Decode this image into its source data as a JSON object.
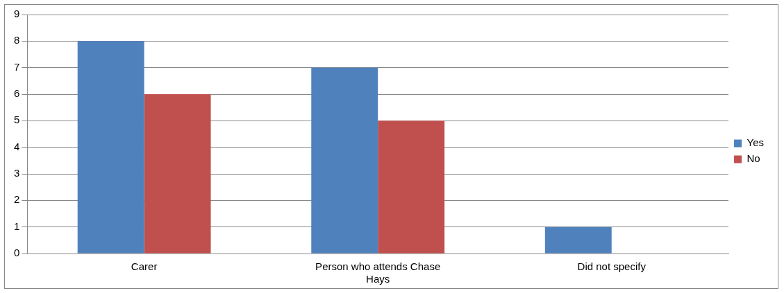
{
  "chart_data": {
    "type": "bar",
    "categories": [
      "Carer",
      "Person who attends Chase Hays",
      "Did not specify"
    ],
    "series": [
      {
        "name": "Yes",
        "color": "#4f81bd",
        "values": [
          8,
          7,
          1
        ]
      },
      {
        "name": "No",
        "color": "#c0504d",
        "values": [
          6,
          5,
          0
        ]
      }
    ],
    "ylim": [
      0,
      9
    ],
    "yticks": [
      0,
      1,
      2,
      3,
      4,
      5,
      6,
      7,
      8,
      9
    ],
    "grid": "y",
    "legend": "right"
  }
}
